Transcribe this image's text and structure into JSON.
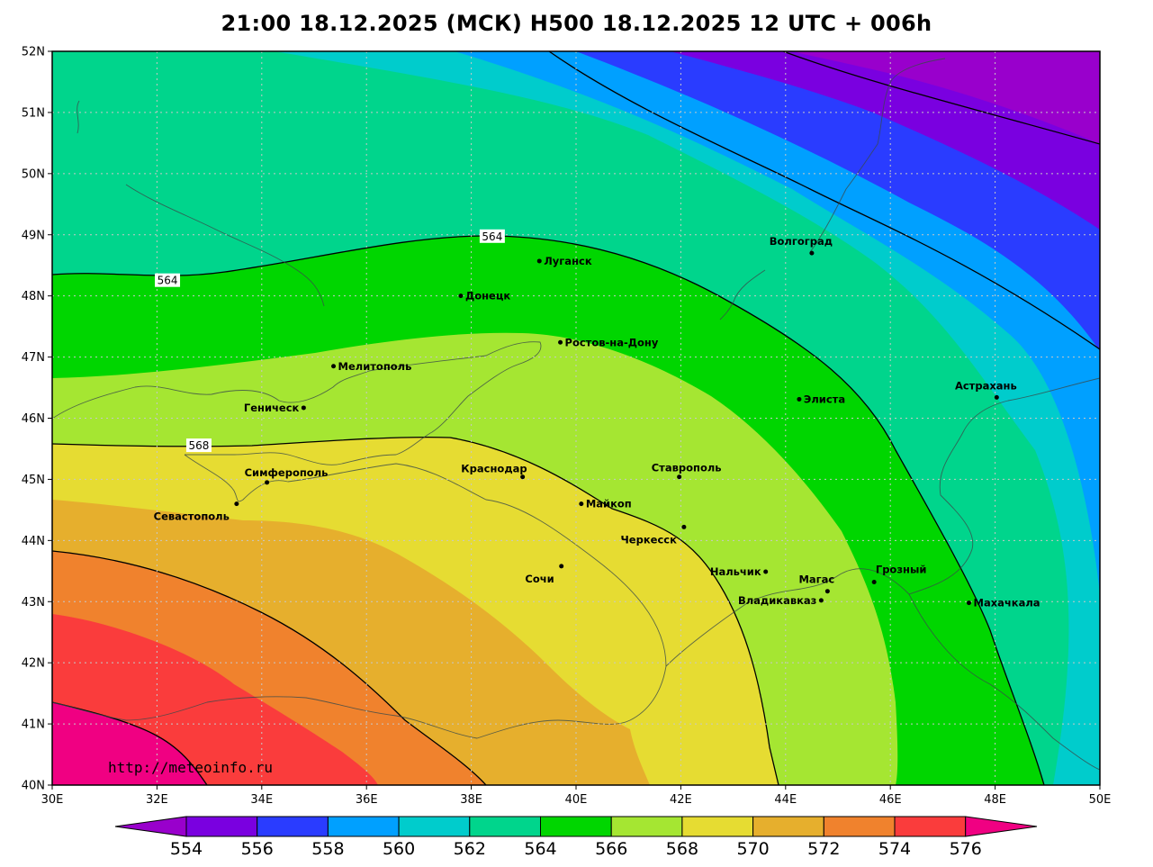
{
  "title": "21:00 18.12.2025 (МСК) H500  18.12.2025 12 UTC + 006h",
  "watermark": "http://meteoinfo.ru",
  "axes": {
    "lon_labels": [
      "30E",
      "32E",
      "34E",
      "36E",
      "38E",
      "40E",
      "42E",
      "44E",
      "46E",
      "48E",
      "50E"
    ],
    "lat_labels": [
      "52N",
      "51N",
      "50N",
      "49N",
      "48N",
      "47N",
      "46N",
      "45N",
      "44N",
      "43N",
      "42N",
      "41N",
      "40N"
    ],
    "lon_range": [
      30,
      50
    ],
    "lat_range": [
      40,
      52
    ],
    "grid": true
  },
  "contour_labels": [
    {
      "text": "564",
      "lon": 38.4,
      "lat": 48.97
    },
    {
      "text": "564",
      "lon": 32.2,
      "lat": 48.25
    },
    {
      "text": "568",
      "lon": 32.8,
      "lat": 45.55
    }
  ],
  "cities": [
    {
      "name": "Луганск",
      "lon": 39.3,
      "lat": 48.57,
      "label_side": "right"
    },
    {
      "name": "Донецк",
      "lon": 37.8,
      "lat": 48.0,
      "label_side": "right"
    },
    {
      "name": "Волгоград",
      "lon": 44.5,
      "lat": 48.7,
      "label_side": "above-left"
    },
    {
      "name": "Ростов-на-Дону",
      "lon": 39.7,
      "lat": 47.24,
      "label_side": "right"
    },
    {
      "name": "Мелитополь",
      "lon": 35.37,
      "lat": 46.85,
      "label_side": "right"
    },
    {
      "name": "Геническ",
      "lon": 34.8,
      "lat": 46.17,
      "label_side": "left"
    },
    {
      "name": "Элиста",
      "lon": 44.26,
      "lat": 46.31,
      "label_side": "right"
    },
    {
      "name": "Астрахань",
      "lon": 48.03,
      "lat": 46.34,
      "label_side": "above-left"
    },
    {
      "name": "Симферополь",
      "lon": 34.1,
      "lat": 44.95,
      "label_side": "right-above"
    },
    {
      "name": "Краснодар",
      "lon": 38.98,
      "lat": 45.04,
      "label_side": "left-above"
    },
    {
      "name": "Ставрополь",
      "lon": 41.97,
      "lat": 45.04,
      "label_side": "above"
    },
    {
      "name": "Майкоп",
      "lon": 40.1,
      "lat": 44.6,
      "label_side": "right"
    },
    {
      "name": "Севастополь",
      "lon": 33.52,
      "lat": 44.6,
      "label_side": "below-left"
    },
    {
      "name": "Черкесск",
      "lon": 42.06,
      "lat": 44.22,
      "label_side": "below-left"
    },
    {
      "name": "Нальчик",
      "lon": 43.62,
      "lat": 43.49,
      "label_side": "left"
    },
    {
      "name": "Грозный",
      "lon": 45.69,
      "lat": 43.32,
      "label_side": "above-right"
    },
    {
      "name": "Магас",
      "lon": 44.8,
      "lat": 43.17,
      "label_side": "above-left"
    },
    {
      "name": "Сочи",
      "lon": 39.72,
      "lat": 43.58,
      "label_side": "below-left"
    },
    {
      "name": "Владикавказ",
      "lon": 44.68,
      "lat": 43.02,
      "label_side": "left"
    },
    {
      "name": "Махачкала",
      "lon": 47.5,
      "lat": 42.98,
      "label_side": "right"
    }
  ],
  "colorbar": {
    "labels": [
      "554",
      "556",
      "558",
      "560",
      "562",
      "564",
      "566",
      "568",
      "570",
      "572",
      "574",
      "576"
    ],
    "colors": [
      "#9900cc",
      "#7a00e0",
      "#2a3cff",
      "#00a0ff",
      "#00cccc",
      "#00d58c",
      "#00d600",
      "#a5e632",
      "#e6dc32",
      "#e6af2d",
      "#f0822d",
      "#fa3c3c",
      "#ff3c3c",
      "#f00082"
    ]
  },
  "fills": {
    "554": "#9900cc",
    "556": "#7a00e0",
    "558": "#2a3cff",
    "560": "#00a0ff",
    "562": "#00cccc",
    "564": "#00d58c",
    "566": "#00d600",
    "568": "#a5e632",
    "570": "#e6dc32",
    "572": "#e6af2d",
    "574": "#f0822d",
    "576": "#fa3c3c",
    "578": "#f00082"
  }
}
